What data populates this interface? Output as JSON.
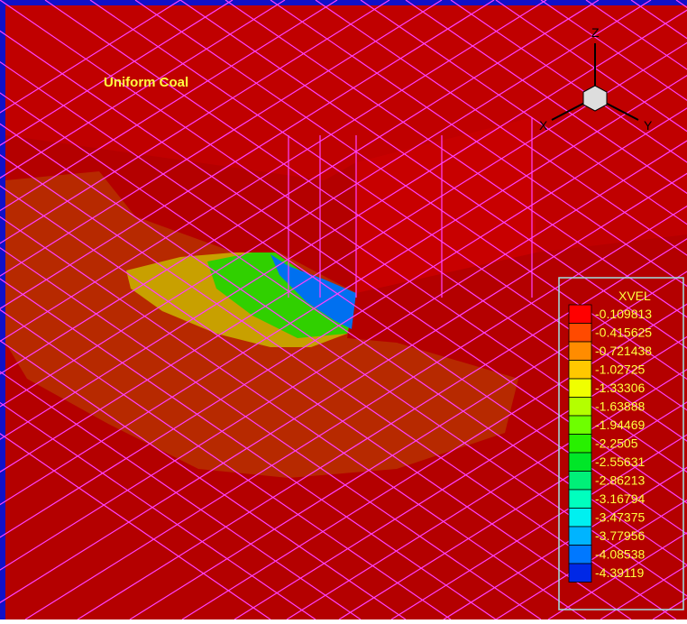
{
  "title": "Uniform Coal",
  "axes": {
    "x": "X",
    "y": "Y",
    "z": "Z"
  },
  "legend": {
    "title": "XVEL",
    "levels": [
      {
        "label": "-0.109813",
        "color": "#ff0000"
      },
      {
        "label": "-0.415625",
        "color": "#ff4a00"
      },
      {
        "label": "-0.721438",
        "color": "#ff8c00"
      },
      {
        "label": "-1.02725",
        "color": "#ffc800"
      },
      {
        "label": "-1.33306",
        "color": "#f0ff00"
      },
      {
        "label": "-1.63888",
        "color": "#b4ff00"
      },
      {
        "label": "-1.94469",
        "color": "#6eff00"
      },
      {
        "label": "-2.2505",
        "color": "#28f000"
      },
      {
        "label": "-2.55631",
        "color": "#00e628"
      },
      {
        "label": "-2.86213",
        "color": "#00f078"
      },
      {
        "label": "-3.16794",
        "color": "#00ffbe"
      },
      {
        "label": "-3.47375",
        "color": "#00f0f0"
      },
      {
        "label": "-3.77956",
        "color": "#00b4ff"
      },
      {
        "label": "-4.08538",
        "color": "#0078ff"
      },
      {
        "label": "-4.39119",
        "color": "#0028e6"
      }
    ]
  }
}
